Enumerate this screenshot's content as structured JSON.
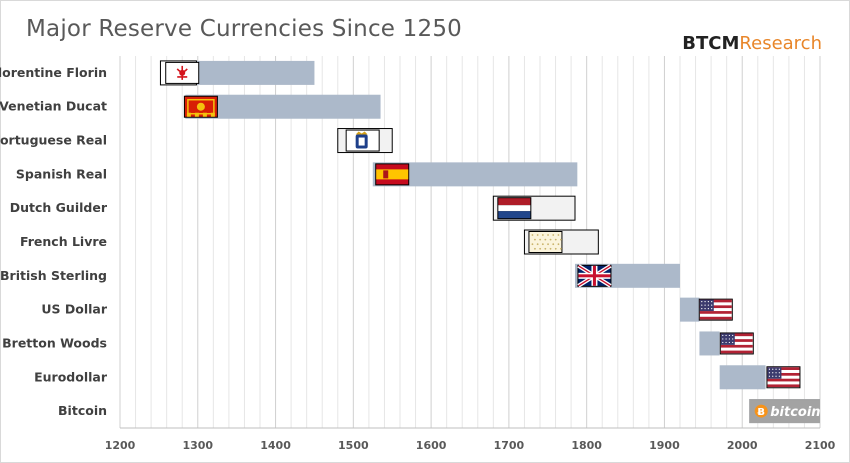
{
  "title": "Major Reserve Currencies Since 1250",
  "brand": {
    "part1": "BTCM",
    "part2": "Research"
  },
  "chart_data": {
    "type": "bar",
    "orientation": "horizontal-range",
    "xlim": [
      1200,
      2100
    ],
    "xticks": [
      1200,
      1300,
      1400,
      1500,
      1600,
      1700,
      1800,
      1900,
      2000,
      2100
    ],
    "grid": true,
    "bar_color": "#acb9ca",
    "series": [
      {
        "name": "Florentine Florin",
        "start": 1252,
        "end": 1450,
        "flag": "florence-icon",
        "flag_year": 1280
      },
      {
        "name": "Venetian Ducat",
        "start": 1284,
        "end": 1535,
        "flag": "venice-flag-icon",
        "flag_year": 1304
      },
      {
        "name": "Portuguese Real",
        "start": 1480,
        "end": 1550,
        "flag": "portugal-flag-icon",
        "flag_year": 1512
      },
      {
        "name": "Spanish Real",
        "start": 1525,
        "end": 1788,
        "flag": "spain-flag-icon",
        "flag_year": 1550
      },
      {
        "name": "Dutch Guilder",
        "start": 1680,
        "end": 1785,
        "flag": "netherlands-flag-icon",
        "flag_year": 1707
      },
      {
        "name": "French Livre",
        "start": 1720,
        "end": 1815,
        "flag": "france-royal-flag-icon",
        "flag_year": 1747
      },
      {
        "name": "British Sterling",
        "start": 1785,
        "end": 1920,
        "flag": "uk-flag-icon",
        "flag_year": 1810
      },
      {
        "name": "US Dollar",
        "start": 1920,
        "end": 1945,
        "flag": "us-flag-icon",
        "flag_year": 1966
      },
      {
        "name": "Bretton Woods",
        "start": 1945,
        "end": 1971,
        "flag": "us-flag-icon",
        "flag_year": 1993
      },
      {
        "name": "Eurodollar",
        "start": 1971,
        "end": 2030,
        "flag": "us-flag-icon",
        "flag_year": 2053
      },
      {
        "name": "Bitcoin",
        "start": 2009,
        "end": 2100,
        "flag": "bitcoin-logo-icon",
        "flag_year": 2050
      }
    ]
  }
}
